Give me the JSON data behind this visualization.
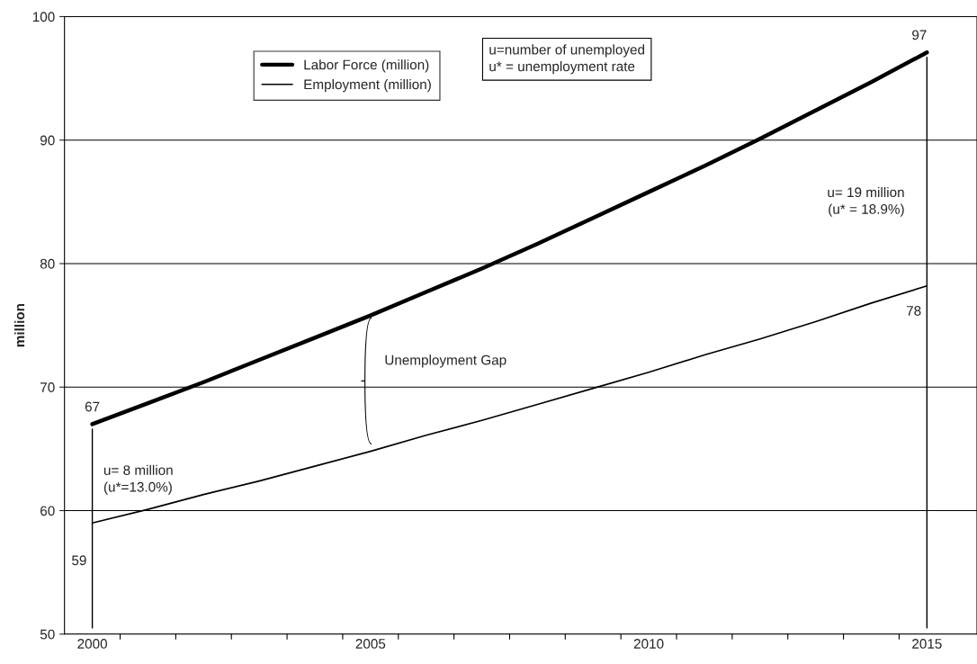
{
  "chart_data": {
    "type": "line",
    "ylabel": "million",
    "categories": [
      "2000",
      null,
      null,
      null,
      null,
      "2005",
      null,
      null,
      null,
      null,
      "2010",
      null,
      null,
      null,
      null,
      "2015"
    ],
    "series": [
      {
        "name": "Labor Force (million)",
        "color": "#000000",
        "values": [
          67.0,
          68.7,
          70.4,
          72.2,
          74.0,
          75.8,
          77.7,
          79.6,
          81.6,
          83.7,
          85.8,
          87.9,
          90.1,
          92.4,
          94.7,
          97.1
        ],
        "value_labels": [
          "67",
          null,
          null,
          null,
          null,
          null,
          null,
          null,
          null,
          null,
          null,
          null,
          null,
          null,
          null,
          "97"
        ]
      },
      {
        "name": "Employment (million)",
        "color": "#000000",
        "values": [
          59.0,
          60.1,
          61.3,
          62.4,
          63.6,
          64.8,
          66.1,
          67.3,
          68.6,
          69.9,
          71.2,
          72.6,
          73.9,
          75.3,
          76.8,
          78.2
        ],
        "value_labels": [
          "59",
          null,
          null,
          null,
          null,
          null,
          null,
          null,
          null,
          null,
          null,
          null,
          null,
          null,
          null,
          "78"
        ]
      }
    ],
    "ylim": [
      50,
      100
    ],
    "yticks": [
      50,
      60,
      70,
      80,
      90,
      100
    ],
    "grid": "y",
    "legend": "top left",
    "ref_lines": [
      {
        "axis": "x",
        "value": "2000",
        "label": null,
        "color": "#000000"
      },
      {
        "axis": "x",
        "value": "2015",
        "label": null,
        "color": "#000000"
      }
    ],
    "annotations": [
      "u=number of unemployed\nu* = unemployment rate",
      "Unemployment Gap",
      {
        "text": "u= 8 million\n(u*=13.0%)",
        "x": "2000",
        "y": 62.5
      },
      {
        "text": "u= 19 million\n(u* = 18.9%)",
        "x": "2015",
        "y": 85
      }
    ]
  }
}
